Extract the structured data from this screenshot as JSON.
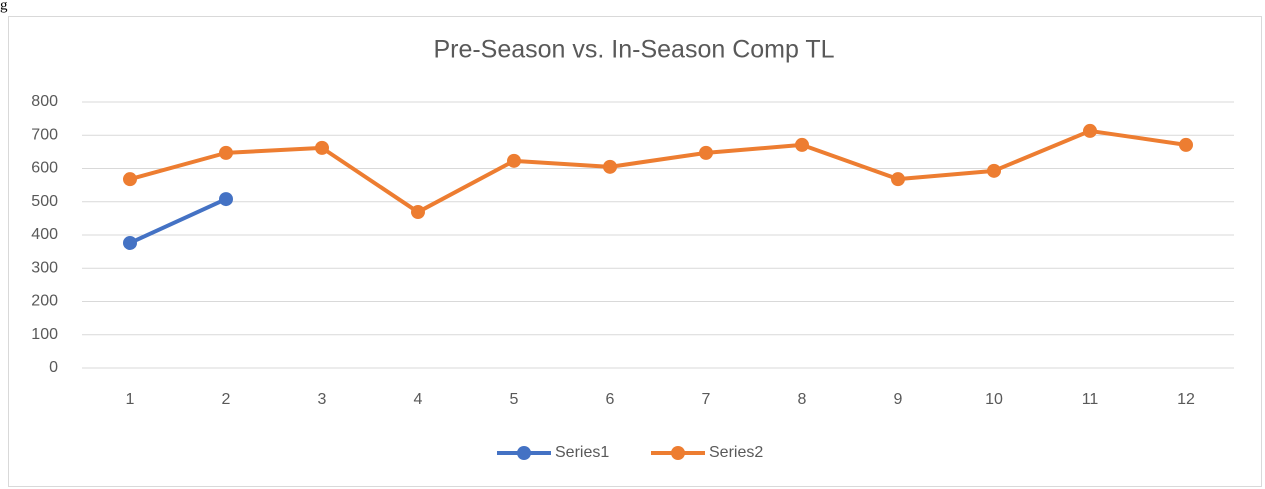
{
  "page_fragment": "g",
  "chart_data": {
    "type": "line",
    "title": "Pre-Season vs. In-Season Comp TL",
    "categories": [
      1,
      2,
      3,
      4,
      5,
      6,
      7,
      8,
      9,
      10,
      11,
      12
    ],
    "series": [
      {
        "name": "Series1",
        "color": "#4472c4",
        "values": [
          376,
          508,
          null,
          null,
          null,
          null,
          null,
          null,
          null,
          null,
          null,
          null
        ]
      },
      {
        "name": "Series2",
        "color": "#ed7d31",
        "values": [
          568,
          647,
          662,
          469,
          623,
          605,
          647,
          671,
          568,
          593,
          713,
          671
        ]
      }
    ],
    "ylim": [
      0,
      800
    ],
    "yticks": [
      0,
      100,
      200,
      300,
      400,
      500,
      600,
      700,
      800
    ],
    "grid": true,
    "legend": "bottom"
  }
}
